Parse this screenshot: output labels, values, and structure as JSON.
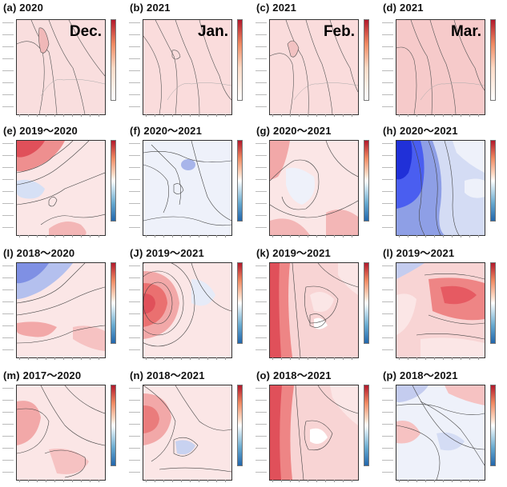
{
  "panels": [
    {
      "id": "a",
      "title": "(a) 2020",
      "month": "Dec.",
      "type": "pos"
    },
    {
      "id": "b",
      "title": "(b) 2021",
      "month": "Jan.",
      "type": "pos"
    },
    {
      "id": "c",
      "title": "(c) 2021",
      "month": "Feb.",
      "type": "pos"
    },
    {
      "id": "d",
      "title": "(d) 2021",
      "month": "Mar.",
      "type": "pos"
    },
    {
      "id": "e",
      "title": "(e) 2019～2020",
      "month": "",
      "type": "div"
    },
    {
      "id": "f",
      "title": "(f) 2020～2021",
      "month": "",
      "type": "div"
    },
    {
      "id": "g",
      "title": "(g) 2020～2021",
      "month": "",
      "type": "div"
    },
    {
      "id": "h",
      "title": "(h) 2020～2021",
      "month": "",
      "type": "div"
    },
    {
      "id": "i",
      "title": "(I) 2018～2020",
      "month": "",
      "type": "div"
    },
    {
      "id": "j",
      "title": "(J) 2019～2021",
      "month": "",
      "type": "div"
    },
    {
      "id": "k",
      "title": "(k) 2019～2021",
      "month": "",
      "type": "div"
    },
    {
      "id": "l",
      "title": "(l) 2019～2021",
      "month": "",
      "type": "div"
    },
    {
      "id": "m",
      "title": "(m) 2017～2020",
      "month": "",
      "type": "div"
    },
    {
      "id": "n",
      "title": "(n) 2018～2021",
      "month": "",
      "type": "div"
    },
    {
      "id": "o",
      "title": "(o) 2018～2021",
      "month": "",
      "type": "div"
    },
    {
      "id": "p",
      "title": "(p) 2018～2021",
      "month": "",
      "type": "div"
    }
  ],
  "colors": {
    "red": "#e8505a",
    "lightred": "#f7c9c9",
    "paleblue": "#cdd9f2",
    "blue": "#2b3fe0"
  }
}
